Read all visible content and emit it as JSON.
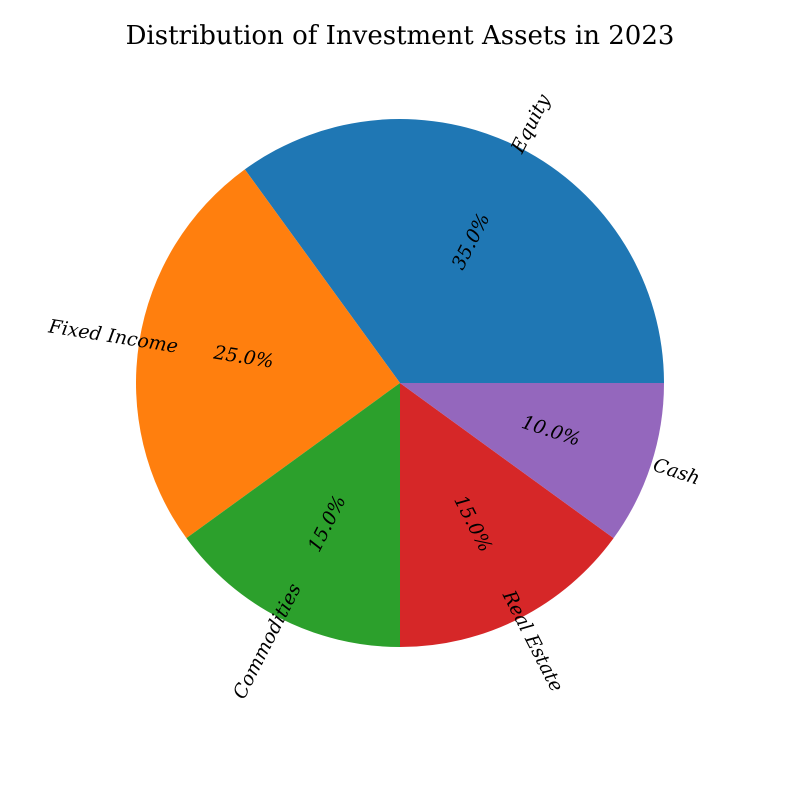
{
  "chart_data": {
    "type": "pie",
    "title": "Distribution of Investment Assets in 2023",
    "categories": [
      "Equity",
      "Fixed Income",
      "Commodities",
      "Real Estate",
      "Cash"
    ],
    "values": [
      35.0,
      25.0,
      15.0,
      15.0,
      10.0
    ],
    "value_labels": [
      "35.0%",
      "25.0%",
      "15.0%",
      "15.0%",
      "10.0%"
    ],
    "colors": [
      "#1f77b4",
      "#ff7f0e",
      "#2ca02c",
      "#d62728",
      "#9467bd"
    ],
    "start_angle_deg": 0,
    "direction": "counterclockwise",
    "legend": "none"
  }
}
